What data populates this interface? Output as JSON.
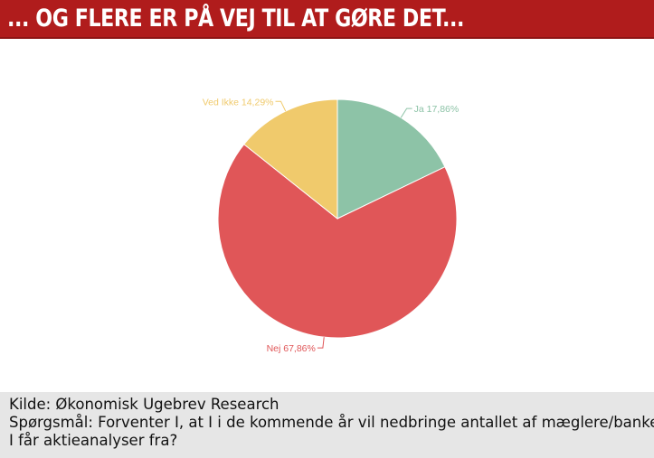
{
  "header": {
    "title": "... OG FLERE ER PÅ VEJ TIL AT GØRE DET..."
  },
  "chart_data": {
    "type": "pie",
    "slices": [
      {
        "label": "Ja 17,86%",
        "value": 17.86,
        "color": "#8dc3a7"
      },
      {
        "label": "Nej 67,86%",
        "value": 67.86,
        "color": "#e05658"
      },
      {
        "label": "Ved Ikke 14,29%",
        "value": 14.29,
        "color": "#f0ca6c"
      }
    ],
    "start": "12 o'clock",
    "direction": "clockwise",
    "legend": "none"
  },
  "footer": {
    "source": "Kilde: Økonomisk Ugebrev Research",
    "question_line1": "Spørgsmål: Forventer I, at I i de kommende år vil nedbringe antallet af mæglere/banker,",
    "question_line2": "I får aktieanalyser fra?"
  }
}
